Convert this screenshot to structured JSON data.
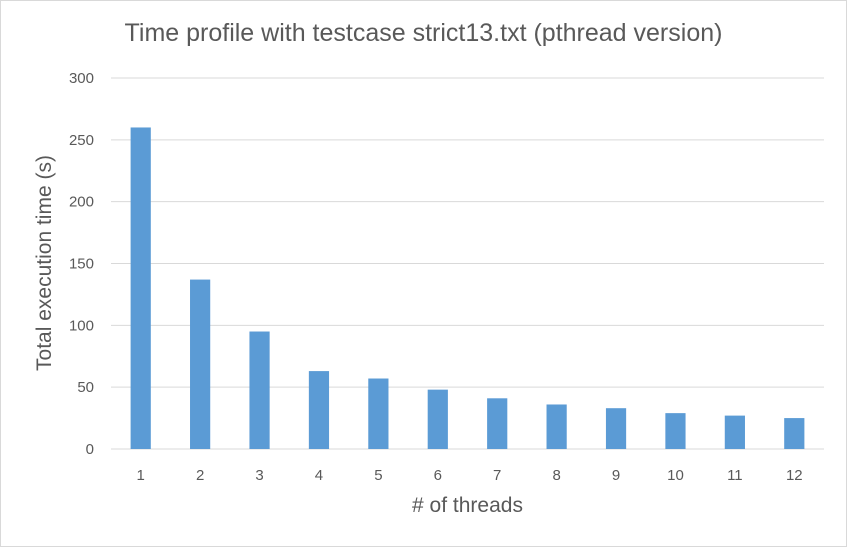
{
  "chart_data": {
    "type": "bar",
    "title": "Time profile with testcase strict13.txt (pthread version)",
    "xlabel": "# of threads",
    "ylabel": "Total execution time (s)",
    "categories": [
      "1",
      "2",
      "3",
      "4",
      "5",
      "6",
      "7",
      "8",
      "9",
      "10",
      "11",
      "12"
    ],
    "values": [
      260,
      137,
      95,
      63,
      57,
      48,
      41,
      36,
      33,
      29,
      27,
      25
    ],
    "ylim": [
      0,
      300
    ],
    "yticks": [
      0,
      50,
      100,
      150,
      200,
      250,
      300
    ],
    "grid": true,
    "bar_color": "#5b9bd5",
    "grid_color": "#d9d9d9"
  }
}
